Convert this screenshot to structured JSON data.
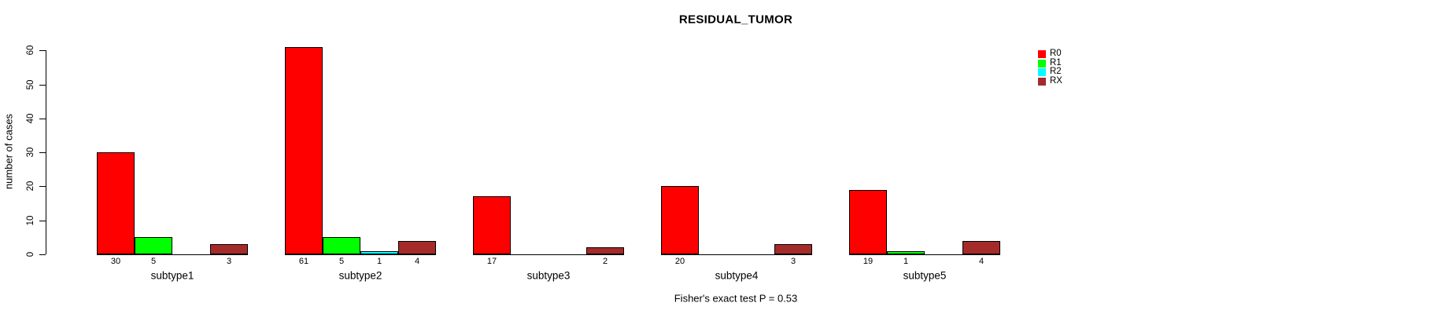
{
  "chart_data": {
    "type": "bar",
    "title": "RESIDUAL_TUMOR",
    "ylabel": "number of cases",
    "footnote": "Fisher's exact test P = 0.53",
    "categories": [
      "subtype1",
      "subtype2",
      "subtype3",
      "subtype4",
      "subtype5"
    ],
    "series": [
      {
        "name": "R0",
        "color": "#ff0000",
        "values": [
          30,
          61,
          17,
          20,
          19
        ]
      },
      {
        "name": "R1",
        "color": "#00ff00",
        "values": [
          5,
          5,
          0,
          0,
          1
        ]
      },
      {
        "name": "R2",
        "color": "#00ffff",
        "values": [
          0,
          1,
          0,
          0,
          0
        ]
      },
      {
        "name": "RX",
        "color": "#a52a2a",
        "values": [
          3,
          4,
          2,
          3,
          4
        ]
      }
    ],
    "ylim": [
      0,
      60
    ],
    "yticks": [
      0,
      10,
      20,
      30,
      40,
      50,
      60
    ],
    "grid": false,
    "legend_position": "top-right",
    "bar_value_labels_visible": true,
    "zero_values_hidden": true,
    "colors": {
      "axis": "#000000",
      "text": "#000000",
      "background": "#ffffff"
    }
  }
}
